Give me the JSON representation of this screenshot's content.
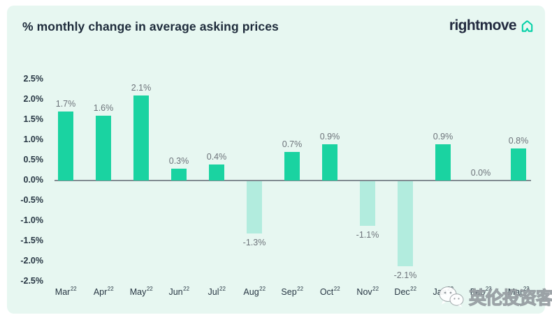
{
  "header": {
    "title": "% monthly change in average asking prices",
    "brand": "rightmove",
    "brand_icon": "house-outline-icon"
  },
  "watermark": {
    "icon": "wechat-icon",
    "text": "英伦投资客"
  },
  "chart_data": {
    "type": "bar",
    "title": "% monthly change in average asking prices",
    "categories": [
      {
        "month": "Mar",
        "year": "22"
      },
      {
        "month": "Apr",
        "year": "22"
      },
      {
        "month": "May",
        "year": "22"
      },
      {
        "month": "Jun",
        "year": "22"
      },
      {
        "month": "Jul",
        "year": "22"
      },
      {
        "month": "Aug",
        "year": "22"
      },
      {
        "month": "Sep",
        "year": "22"
      },
      {
        "month": "Oct",
        "year": "22"
      },
      {
        "month": "Nov",
        "year": "22"
      },
      {
        "month": "Dec",
        "year": "22"
      },
      {
        "month": "Jan",
        "year": "23"
      },
      {
        "month": "Feb",
        "year": "23"
      },
      {
        "month": "Mar",
        "year": "23"
      }
    ],
    "values": [
      1.7,
      1.6,
      2.1,
      0.3,
      0.4,
      -1.3,
      0.7,
      0.9,
      -1.1,
      -2.1,
      0.9,
      0.0,
      0.8
    ],
    "value_labels": [
      "1.7%",
      "1.6%",
      "2.1%",
      "0.3%",
      "0.4%",
      "-1.3%",
      "0.7%",
      "0.9%",
      "-1.1%",
      "-2.1%",
      "0.9%",
      "0.0%",
      "0.8%"
    ],
    "y_ticks": [
      "2.5%",
      "2.0%",
      "1.5%",
      "1.0%",
      "0.5%",
      "0.0%",
      "-0.5%",
      "-1.0%",
      "-1.5%",
      "-2.0%",
      "-2.5%"
    ],
    "ylim": [
      -2.5,
      2.5
    ],
    "grid": false,
    "legend": "none",
    "xlabel": "",
    "ylabel": "",
    "colors": {
      "positive_bar": "#1ad3a1",
      "negative_bar": "#b2ecde",
      "axis_line": "#828c92",
      "tick_text": "#273643",
      "value_text": "#6d737a",
      "card_background": "#e7f7f1",
      "page_background": "#ffffff",
      "title_text": "#1e2b3b",
      "brand_text": "#222a3f",
      "brand_icon_color": "#00d0a6"
    }
  }
}
